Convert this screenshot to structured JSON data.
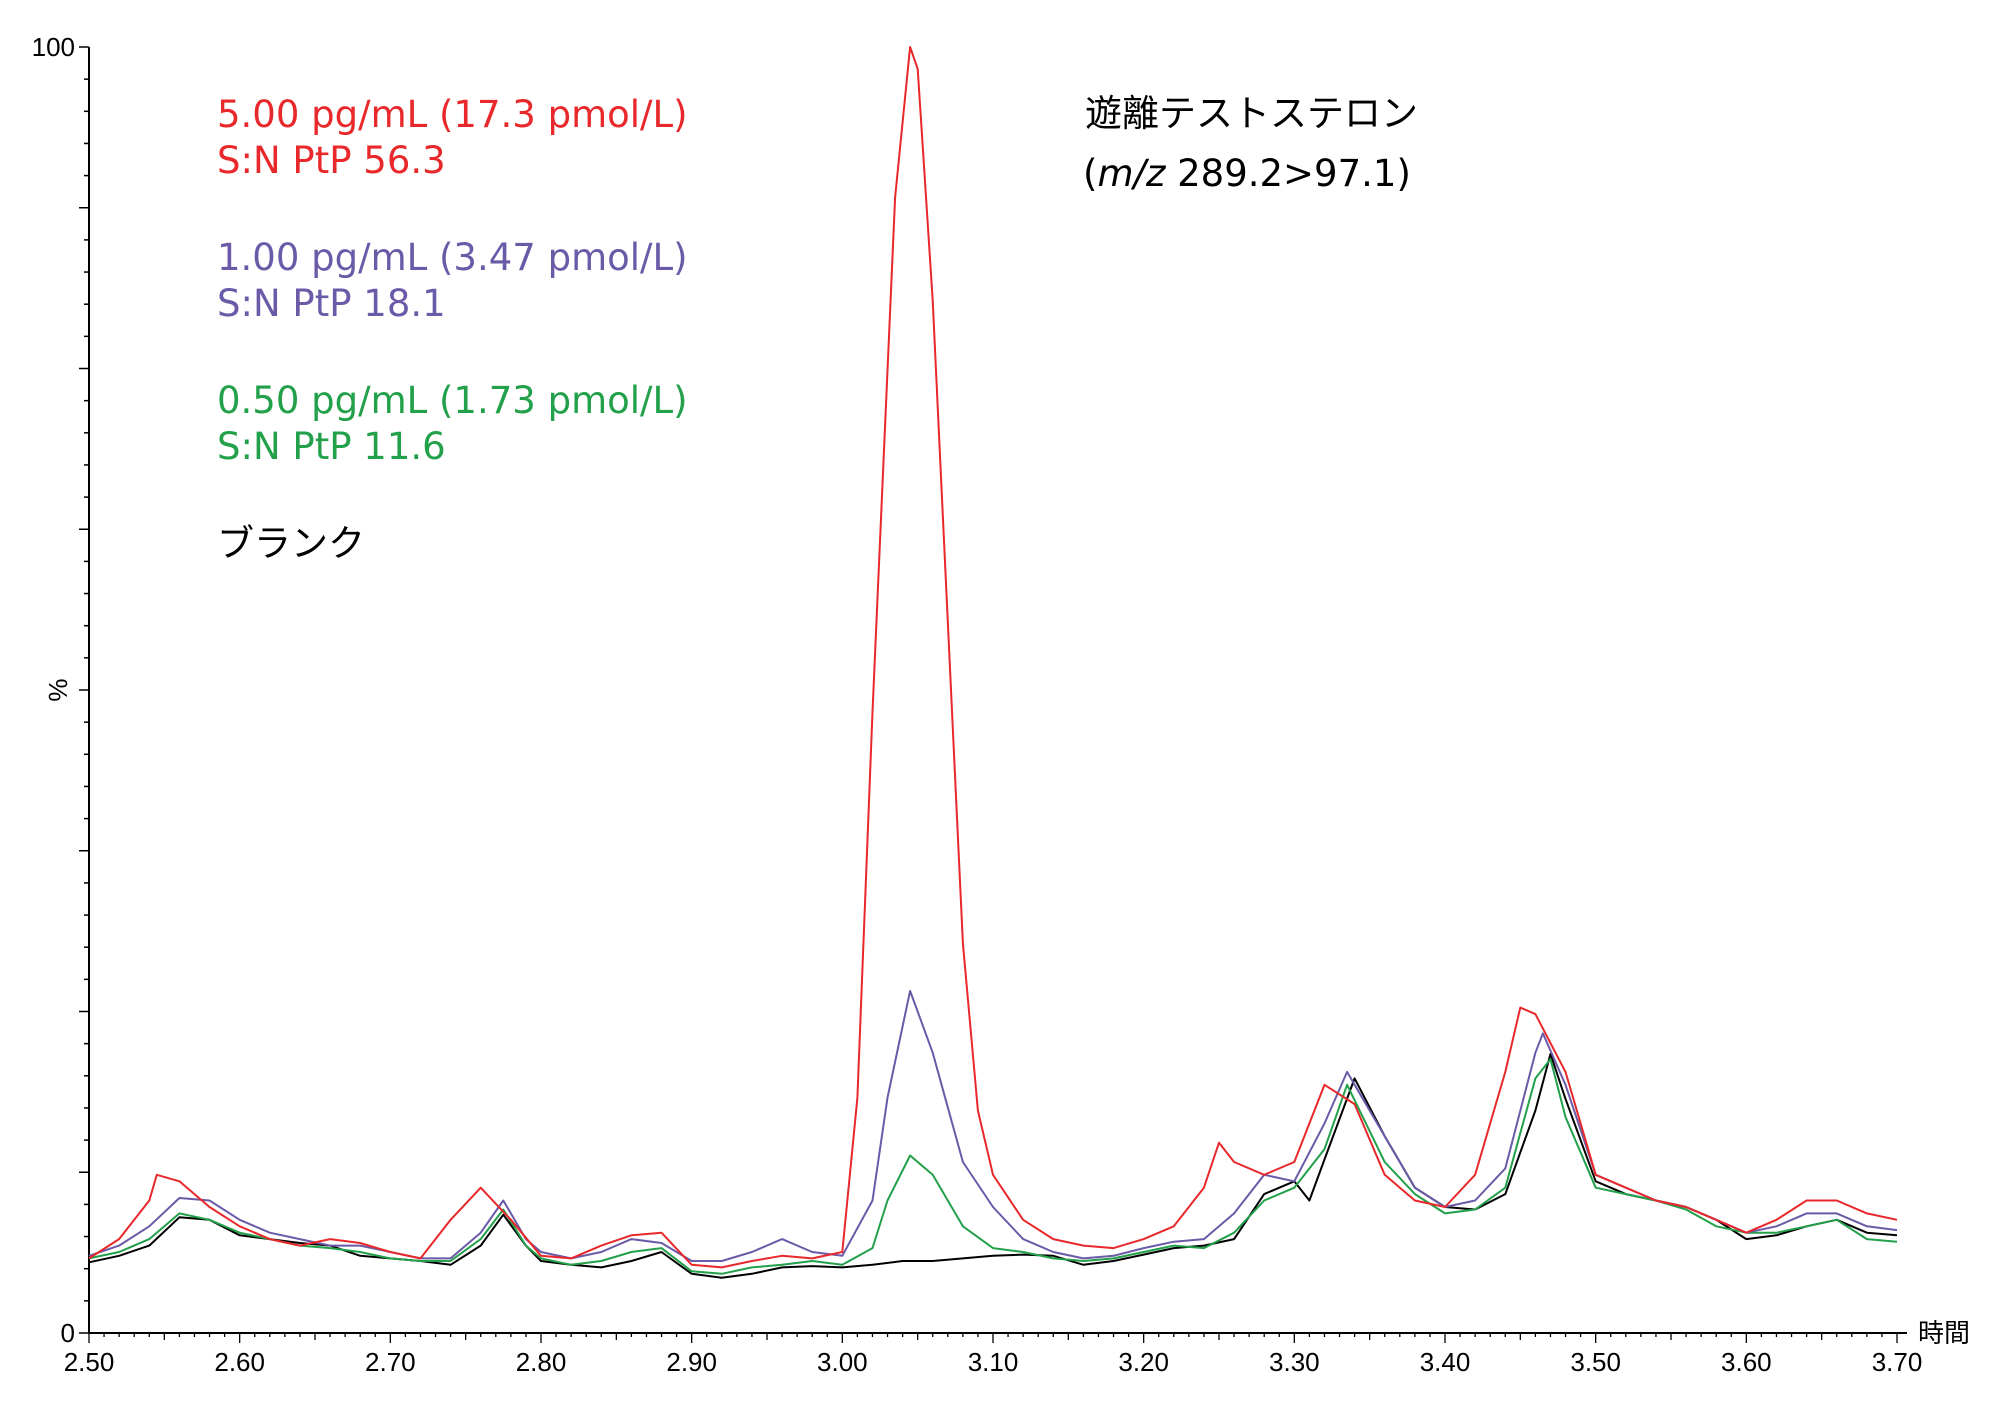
{
  "chart_data": {
    "type": "line",
    "title": "遊離テストステロン",
    "subtitle_prefix": "(",
    "subtitle_italic": "m/z",
    "subtitle_rest": " 289.2>97.1)",
    "xlabel": "時間",
    "ylabel": "%",
    "xlim": [
      2.5,
      3.7
    ],
    "ylim": [
      0,
      100
    ],
    "x_ticks": [
      "2.50",
      "2.60",
      "2.70",
      "2.80",
      "2.90",
      "3.00",
      "3.10",
      "3.20",
      "3.30",
      "3.40",
      "3.50",
      "3.60",
      "3.70"
    ],
    "y_ticks": [
      "0",
      "100"
    ],
    "series": [
      {
        "name": "blank",
        "color": "#000000",
        "legend": [
          "ブランク"
        ],
        "points": [
          [
            2.5,
            5.5
          ],
          [
            2.52,
            6.0
          ],
          [
            2.54,
            6.8
          ],
          [
            2.56,
            9.0
          ],
          [
            2.58,
            8.8
          ],
          [
            2.6,
            7.6
          ],
          [
            2.62,
            7.3
          ],
          [
            2.64,
            7.0
          ],
          [
            2.66,
            6.8
          ],
          [
            2.68,
            6.0
          ],
          [
            2.7,
            5.8
          ],
          [
            2.72,
            5.6
          ],
          [
            2.74,
            5.3
          ],
          [
            2.76,
            6.8
          ],
          [
            2.775,
            9.2
          ],
          [
            2.79,
            6.8
          ],
          [
            2.8,
            5.6
          ],
          [
            2.82,
            5.3
          ],
          [
            2.84,
            5.1
          ],
          [
            2.86,
            5.6
          ],
          [
            2.88,
            6.3
          ],
          [
            2.9,
            4.6
          ],
          [
            2.92,
            4.3
          ],
          [
            2.94,
            4.6
          ],
          [
            2.96,
            5.1
          ],
          [
            2.98,
            5.2
          ],
          [
            3.0,
            5.1
          ],
          [
            3.02,
            5.3
          ],
          [
            3.04,
            5.6
          ],
          [
            3.06,
            5.6
          ],
          [
            3.08,
            5.8
          ],
          [
            3.1,
            6.0
          ],
          [
            3.12,
            6.1
          ],
          [
            3.14,
            6.0
          ],
          [
            3.16,
            5.3
          ],
          [
            3.18,
            5.6
          ],
          [
            3.2,
            6.1
          ],
          [
            3.22,
            6.6
          ],
          [
            3.24,
            6.8
          ],
          [
            3.26,
            7.3
          ],
          [
            3.28,
            10.8
          ],
          [
            3.3,
            11.8
          ],
          [
            3.31,
            10.3
          ],
          [
            3.32,
            13.5
          ],
          [
            3.34,
            19.8
          ],
          [
            3.36,
            15.3
          ],
          [
            3.38,
            11.3
          ],
          [
            3.4,
            9.8
          ],
          [
            3.42,
            9.6
          ],
          [
            3.44,
            10.8
          ],
          [
            3.46,
            17.3
          ],
          [
            3.47,
            21.7
          ],
          [
            3.48,
            18.2
          ],
          [
            3.5,
            11.8
          ],
          [
            3.52,
            10.8
          ],
          [
            3.54,
            10.3
          ],
          [
            3.56,
            9.8
          ],
          [
            3.58,
            8.8
          ],
          [
            3.6,
            7.3
          ],
          [
            3.62,
            7.6
          ],
          [
            3.64,
            8.3
          ],
          [
            3.66,
            8.8
          ],
          [
            3.68,
            7.8
          ],
          [
            3.7,
            7.6
          ]
        ]
      },
      {
        "name": "0.50 pg/mL",
        "color": "#22a04a",
        "legend": [
          "0.50 pg/mL (1.73 pmol/L)",
          "S:N PtP 11.6"
        ],
        "points": [
          [
            2.5,
            5.8
          ],
          [
            2.52,
            6.3
          ],
          [
            2.54,
            7.3
          ],
          [
            2.56,
            9.3
          ],
          [
            2.58,
            8.8
          ],
          [
            2.6,
            7.8
          ],
          [
            2.62,
            7.3
          ],
          [
            2.64,
            6.8
          ],
          [
            2.66,
            6.6
          ],
          [
            2.68,
            6.3
          ],
          [
            2.7,
            5.8
          ],
          [
            2.72,
            5.6
          ],
          [
            2.74,
            5.6
          ],
          [
            2.76,
            7.3
          ],
          [
            2.775,
            9.6
          ],
          [
            2.79,
            6.8
          ],
          [
            2.8,
            5.8
          ],
          [
            2.82,
            5.3
          ],
          [
            2.84,
            5.6
          ],
          [
            2.86,
            6.3
          ],
          [
            2.88,
            6.6
          ],
          [
            2.9,
            4.8
          ],
          [
            2.92,
            4.6
          ],
          [
            2.94,
            5.1
          ],
          [
            2.96,
            5.3
          ],
          [
            2.98,
            5.6
          ],
          [
            3.0,
            5.3
          ],
          [
            3.02,
            6.6
          ],
          [
            3.03,
            10.3
          ],
          [
            3.045,
            13.8
          ],
          [
            3.06,
            12.3
          ],
          [
            3.08,
            8.3
          ],
          [
            3.1,
            6.6
          ],
          [
            3.12,
            6.3
          ],
          [
            3.14,
            5.8
          ],
          [
            3.16,
            5.6
          ],
          [
            3.18,
            5.8
          ],
          [
            3.2,
            6.3
          ],
          [
            3.22,
            6.8
          ],
          [
            3.24,
            6.6
          ],
          [
            3.26,
            7.8
          ],
          [
            3.28,
            10.3
          ],
          [
            3.3,
            11.3
          ],
          [
            3.32,
            14.3
          ],
          [
            3.335,
            19.3
          ],
          [
            3.36,
            13.3
          ],
          [
            3.38,
            10.8
          ],
          [
            3.4,
            9.3
          ],
          [
            3.42,
            9.6
          ],
          [
            3.44,
            11.3
          ],
          [
            3.46,
            19.8
          ],
          [
            3.47,
            21.3
          ],
          [
            3.48,
            16.8
          ],
          [
            3.5,
            11.3
          ],
          [
            3.52,
            10.8
          ],
          [
            3.54,
            10.3
          ],
          [
            3.56,
            9.6
          ],
          [
            3.58,
            8.3
          ],
          [
            3.6,
            7.8
          ],
          [
            3.62,
            7.8
          ],
          [
            3.64,
            8.3
          ],
          [
            3.66,
            8.8
          ],
          [
            3.68,
            7.3
          ],
          [
            3.7,
            7.1
          ]
        ]
      },
      {
        "name": "1.00 pg/mL",
        "color": "#6a5aa8",
        "legend": [
          "1.00 pg/mL (3.47 pmol/L)",
          "S:N PtP 18.1"
        ],
        "points": [
          [
            2.5,
            6.0
          ],
          [
            2.52,
            6.8
          ],
          [
            2.54,
            8.3
          ],
          [
            2.56,
            10.5
          ],
          [
            2.58,
            10.3
          ],
          [
            2.6,
            8.8
          ],
          [
            2.62,
            7.8
          ],
          [
            2.64,
            7.3
          ],
          [
            2.66,
            6.8
          ],
          [
            2.68,
            6.8
          ],
          [
            2.7,
            6.3
          ],
          [
            2.72,
            5.8
          ],
          [
            2.74,
            5.8
          ],
          [
            2.76,
            7.8
          ],
          [
            2.775,
            10.3
          ],
          [
            2.79,
            7.3
          ],
          [
            2.8,
            6.3
          ],
          [
            2.82,
            5.8
          ],
          [
            2.84,
            6.3
          ],
          [
            2.86,
            7.3
          ],
          [
            2.88,
            7.0
          ],
          [
            2.9,
            5.6
          ],
          [
            2.92,
            5.6
          ],
          [
            2.94,
            6.3
          ],
          [
            2.96,
            7.3
          ],
          [
            2.98,
            6.3
          ],
          [
            3.0,
            6.0
          ],
          [
            3.02,
            10.3
          ],
          [
            3.03,
            18.3
          ],
          [
            3.045,
            26.6
          ],
          [
            3.06,
            21.8
          ],
          [
            3.08,
            13.3
          ],
          [
            3.1,
            9.8
          ],
          [
            3.12,
            7.3
          ],
          [
            3.14,
            6.3
          ],
          [
            3.16,
            5.8
          ],
          [
            3.18,
            6.0
          ],
          [
            3.2,
            6.6
          ],
          [
            3.22,
            7.1
          ],
          [
            3.24,
            7.3
          ],
          [
            3.26,
            9.3
          ],
          [
            3.28,
            12.3
          ],
          [
            3.3,
            11.8
          ],
          [
            3.32,
            16.3
          ],
          [
            3.335,
            20.3
          ],
          [
            3.36,
            15.3
          ],
          [
            3.38,
            11.3
          ],
          [
            3.4,
            9.8
          ],
          [
            3.42,
            10.3
          ],
          [
            3.44,
            12.8
          ],
          [
            3.46,
            21.8
          ],
          [
            3.465,
            23.3
          ],
          [
            3.48,
            19.3
          ],
          [
            3.5,
            12.3
          ],
          [
            3.52,
            11.3
          ],
          [
            3.54,
            10.3
          ],
          [
            3.56,
            9.8
          ],
          [
            3.58,
            8.8
          ],
          [
            3.6,
            7.8
          ],
          [
            3.62,
            8.3
          ],
          [
            3.64,
            9.3
          ],
          [
            3.66,
            9.3
          ],
          [
            3.68,
            8.3
          ],
          [
            3.7,
            8.0
          ]
        ]
      },
      {
        "name": "5.00 pg/mL",
        "color": "#e8282a",
        "legend": [
          "5.00 pg/mL (17.3 pmol/L)",
          "S:N PtP 56.3"
        ],
        "points": [
          [
            2.5,
            5.8
          ],
          [
            2.52,
            7.3
          ],
          [
            2.54,
            10.3
          ],
          [
            2.545,
            12.3
          ],
          [
            2.56,
            11.8
          ],
          [
            2.58,
            9.8
          ],
          [
            2.6,
            8.3
          ],
          [
            2.62,
            7.3
          ],
          [
            2.64,
            6.8
          ],
          [
            2.66,
            7.3
          ],
          [
            2.68,
            7.0
          ],
          [
            2.7,
            6.3
          ],
          [
            2.72,
            5.8
          ],
          [
            2.74,
            8.8
          ],
          [
            2.76,
            11.3
          ],
          [
            2.78,
            8.8
          ],
          [
            2.8,
            6.0
          ],
          [
            2.82,
            5.8
          ],
          [
            2.84,
            6.8
          ],
          [
            2.86,
            7.6
          ],
          [
            2.88,
            7.8
          ],
          [
            2.9,
            5.3
          ],
          [
            2.92,
            5.1
          ],
          [
            2.94,
            5.6
          ],
          [
            2.96,
            6.0
          ],
          [
            2.98,
            5.8
          ],
          [
            3.0,
            6.3
          ],
          [
            3.01,
            18.3
          ],
          [
            3.02,
            48.3
          ],
          [
            3.035,
            88.3
          ],
          [
            3.045,
            100.0
          ],
          [
            3.05,
            98.3
          ],
          [
            3.06,
            80.3
          ],
          [
            3.07,
            55.3
          ],
          [
            3.08,
            30.3
          ],
          [
            3.09,
            17.3
          ],
          [
            3.1,
            12.3
          ],
          [
            3.12,
            8.8
          ],
          [
            3.14,
            7.3
          ],
          [
            3.16,
            6.8
          ],
          [
            3.18,
            6.6
          ],
          [
            3.2,
            7.3
          ],
          [
            3.22,
            8.3
          ],
          [
            3.24,
            11.3
          ],
          [
            3.25,
            14.8
          ],
          [
            3.26,
            13.3
          ],
          [
            3.28,
            12.3
          ],
          [
            3.3,
            13.3
          ],
          [
            3.32,
            19.3
          ],
          [
            3.34,
            17.8
          ],
          [
            3.36,
            12.3
          ],
          [
            3.38,
            10.3
          ],
          [
            3.4,
            9.8
          ],
          [
            3.42,
            12.3
          ],
          [
            3.44,
            20.3
          ],
          [
            3.45,
            25.3
          ],
          [
            3.46,
            24.8
          ],
          [
            3.48,
            20.3
          ],
          [
            3.5,
            12.3
          ],
          [
            3.52,
            11.3
          ],
          [
            3.54,
            10.3
          ],
          [
            3.56,
            9.8
          ],
          [
            3.58,
            8.8
          ],
          [
            3.6,
            7.8
          ],
          [
            3.62,
            8.8
          ],
          [
            3.64,
            10.3
          ],
          [
            3.66,
            10.3
          ],
          [
            3.68,
            9.3
          ],
          [
            3.7,
            8.8
          ]
        ]
      }
    ]
  }
}
